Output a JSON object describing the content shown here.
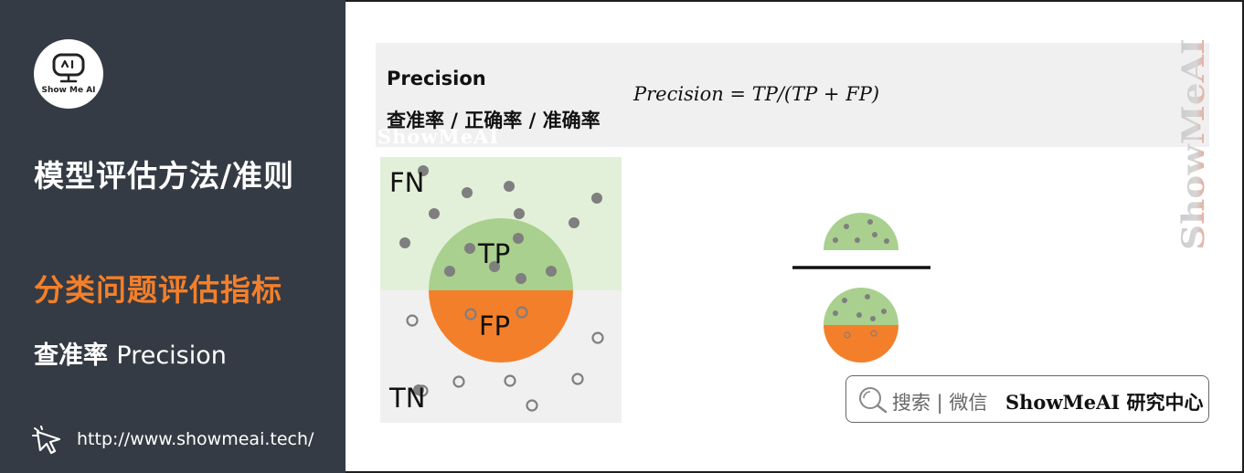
{
  "sidebar": {
    "logo_text": "Show Me AI",
    "section_title": "模型评估方法/准则",
    "topic": "分类问题评估指标",
    "subtopic_zh": "查准率",
    "subtopic_en": "Precision",
    "url": "http://www.showmeai.tech/"
  },
  "header": {
    "title_en": "Precision",
    "title_zh": "查准率 / 正确率 / 准确率",
    "watermark": "ShowMeAI"
  },
  "formula": {
    "lhs": "Precision",
    "eq": " = ",
    "rhs": "TP/(TP + FP)"
  },
  "diagram": {
    "fn_label": "FN",
    "tp_label": "TP",
    "fp_label": "FP",
    "tn_label": "TN"
  },
  "watermark_vertical": "ShowMeAI",
  "search": {
    "label": "搜索 | 微信",
    "brand_en": "ShowMeAI",
    "brand_zh": " 研究中心"
  },
  "colors": {
    "sidebar_bg": "#343b44",
    "accent_orange": "#f47f2a",
    "positive_light": "#e2efd9",
    "negative_light": "#f0f0f0",
    "tp_green": "#a9d08e",
    "fp_orange": "#f47f2a",
    "dot_gray": "#7f7f7f"
  },
  "icons": [
    "robot-logo-icon",
    "cursor-click-icon",
    "search-icon"
  ]
}
